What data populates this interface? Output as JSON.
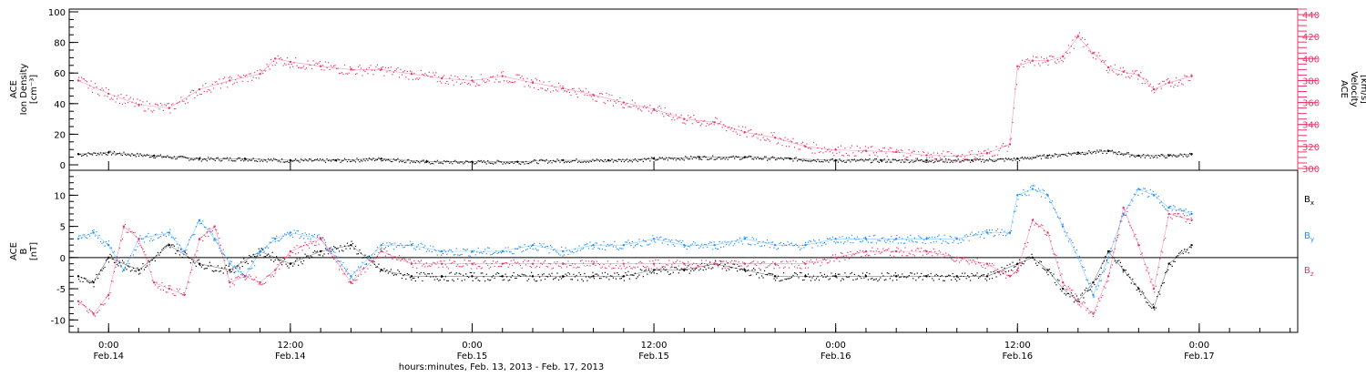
{
  "colors": {
    "black": "#000000",
    "blue": "#1e90ff",
    "red": "#e8386a",
    "axis": "#000000"
  },
  "chart_data": [
    {
      "type": "scatter",
      "panel": "top",
      "ylabel_lines": [
        "ACE",
        "Ion Density",
        "[cm⁻³]"
      ],
      "ylim": [
        0,
        100
      ],
      "yticks": [
        0,
        20,
        40,
        60,
        80,
        100
      ],
      "y2label_lines": [
        "ACE",
        "Velocity",
        "[km/s]"
      ],
      "y2lim": [
        300,
        445
      ],
      "y2ticks": [
        300,
        320,
        340,
        360,
        380,
        400,
        420,
        440
      ],
      "series": [
        {
          "name": "Ion Density",
          "axis": "left",
          "color_key": "black",
          "x_hours": [
            -2,
            0,
            3,
            6,
            9,
            12,
            15,
            18,
            21,
            24,
            27,
            30,
            33,
            36,
            39,
            42,
            45,
            48,
            51,
            54,
            57,
            60,
            62,
            64,
            66,
            68,
            70,
            71.5
          ],
          "y": [
            7,
            8,
            6,
            4,
            4,
            3,
            3,
            4,
            2,
            2,
            2,
            3,
            3,
            4,
            5,
            5,
            4,
            3,
            3,
            3,
            3,
            4,
            6,
            8,
            9,
            6,
            6,
            7
          ]
        },
        {
          "name": "Velocity",
          "axis": "right",
          "color_key": "red",
          "x_hours": [
            -2,
            0,
            2,
            4,
            6,
            8,
            10,
            11,
            12,
            14,
            16,
            18,
            20,
            22,
            24,
            26,
            28,
            30,
            32,
            34,
            36,
            38,
            40,
            42,
            44,
            46,
            48,
            50,
            52,
            54,
            56,
            58,
            59.5,
            60,
            61,
            62,
            63,
            64,
            65,
            66,
            67,
            68,
            69,
            70,
            71.5
          ],
          "y": [
            380,
            368,
            358,
            355,
            372,
            380,
            386,
            400,
            397,
            393,
            390,
            390,
            386,
            382,
            380,
            384,
            378,
            373,
            367,
            360,
            354,
            345,
            342,
            333,
            328,
            320,
            317,
            316,
            315,
            312,
            311,
            314,
            322,
            393,
            398,
            398,
            402,
            420,
            405,
            392,
            388,
            385,
            372,
            378,
            384
          ]
        }
      ]
    },
    {
      "type": "scatter",
      "panel": "bottom",
      "ylabel_lines": [
        "ACE",
        "B",
        "[nT]"
      ],
      "ylim": [
        -12,
        14
      ],
      "yticks": [
        -10,
        -5,
        0,
        5,
        10
      ],
      "xtick_labels": [
        {
          "time": "0:00",
          "date": "Feb.14"
        },
        {
          "time": "12:00",
          "date": "Feb.14"
        },
        {
          "time": "0:00",
          "date": "Feb.15"
        },
        {
          "time": "12:00",
          "date": "Feb.15"
        },
        {
          "time": "0:00",
          "date": "Feb.16"
        },
        {
          "time": "12:00",
          "date": "Feb.16"
        },
        {
          "time": "0:00",
          "date": "Feb.17"
        }
      ],
      "xtick_hours": [
        0,
        12,
        24,
        36,
        48,
        60,
        72
      ],
      "xlim_hours": [
        -2.6,
        78.5
      ],
      "xlabel": "hours:minutes, Feb. 13, 2013 - Feb. 17, 2013",
      "series": [
        {
          "name": "Bx",
          "label": "B",
          "label_sub": "x",
          "color_key": "black",
          "x_hours": [
            -2,
            -1,
            0,
            2,
            4,
            6,
            8,
            10,
            12,
            14,
            16,
            18,
            20,
            22,
            24,
            26,
            28,
            30,
            32,
            34,
            36,
            38,
            40,
            42,
            44,
            46,
            48,
            50,
            52,
            54,
            56,
            58,
            60,
            61,
            62,
            63,
            64,
            65,
            66,
            67,
            68,
            69,
            70,
            71.5
          ],
          "y": [
            -3,
            -4,
            0,
            -2,
            2,
            -1,
            -2,
            1,
            -1,
            1,
            2,
            -2,
            -3,
            -3,
            -3,
            -3,
            -3,
            -3,
            -3,
            -3,
            -2,
            -2,
            -1,
            -2,
            -3,
            -3,
            -3,
            -3,
            -3,
            -3,
            -3,
            -3,
            -1,
            0,
            -2,
            -5,
            -7,
            -4,
            1,
            -2,
            -5,
            -8,
            -1,
            2
          ]
        },
        {
          "name": "By",
          "label": "B",
          "label_sub": "y",
          "color_key": "blue",
          "x_hours": [
            -2,
            -1,
            0,
            1,
            2,
            4,
            5,
            6,
            7,
            8,
            9,
            10,
            11,
            12,
            14,
            16,
            18,
            20,
            22,
            24,
            26,
            28,
            30,
            32,
            34,
            36,
            38,
            40,
            42,
            44,
            46,
            48,
            50,
            52,
            54,
            56,
            58,
            59.5,
            60,
            61,
            62,
            63,
            64,
            65,
            66,
            67,
            68,
            69,
            70,
            71.5
          ],
          "y": [
            3,
            4,
            2,
            -2,
            3,
            4,
            1,
            6,
            3,
            -1,
            -3,
            1,
            3,
            4,
            3,
            -3,
            2,
            2,
            1,
            1,
            1,
            2,
            1,
            2,
            2,
            3,
            2,
            2,
            3,
            2,
            2,
            3,
            3,
            3,
            3,
            3,
            4,
            4,
            10,
            11,
            10,
            5,
            0,
            -6,
            0,
            7,
            11,
            10,
            8,
            7
          ]
        },
        {
          "name": "Bz",
          "label": "B",
          "label_sub": "z",
          "color_key": "red",
          "x_hours": [
            -2,
            -1,
            0,
            1,
            2,
            3,
            4,
            5,
            6,
            7,
            8,
            9,
            10,
            11,
            12,
            14,
            16,
            18,
            20,
            22,
            24,
            26,
            28,
            30,
            32,
            34,
            36,
            38,
            40,
            42,
            44,
            46,
            48,
            50,
            52,
            54,
            56,
            58,
            59.5,
            60,
            61,
            62,
            63,
            64,
            65,
            66,
            67,
            68,
            69,
            70,
            71.5
          ],
          "y": [
            -7,
            -9,
            -6,
            5,
            3,
            -4,
            -5,
            -6,
            3,
            5,
            -4,
            -3,
            -4,
            -2,
            1,
            3,
            -4,
            1,
            -1,
            -1,
            -1,
            -1,
            -1,
            -1,
            -1,
            -1,
            -1,
            -1,
            -1,
            -1,
            -1,
            -1,
            0,
            1,
            1,
            1,
            0,
            -1,
            -3,
            -2,
            6,
            4,
            -4,
            -7,
            -9,
            -3,
            8,
            2,
            -5,
            7,
            6
          ]
        }
      ]
    }
  ]
}
